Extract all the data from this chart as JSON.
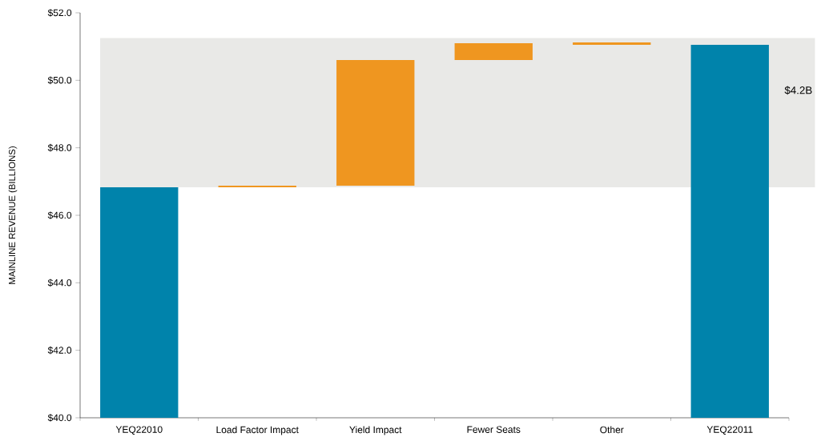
{
  "chart_data": {
    "type": "bar",
    "ylabel": "MAINLINE REVENUE (BILLIONS)",
    "categories": [
      "YEQ22010",
      "Load Factor Impact",
      "Yield Impact",
      "Fewer Seats",
      "Other",
      "YEQ22011"
    ],
    "values": [
      6.83,
      0.05,
      3.72,
      0.5,
      0.07,
      11.05
    ],
    "base": [
      40,
      46.83,
      46.88,
      50.6,
      51.05,
      40
    ],
    "colors": [
      "#0083ab",
      "#ef9620",
      "#ef9620",
      "#ef9620",
      "#ef9620",
      "#0083ab"
    ],
    "ylim": [
      40,
      52
    ],
    "yticks": [
      {
        "value": 40,
        "label": "$40.0"
      },
      {
        "value": 42,
        "label": "$42.0"
      },
      {
        "value": 44,
        "label": "$44.0"
      },
      {
        "value": 46,
        "label": "$46.0"
      },
      {
        "value": 48,
        "label": "$48.0"
      },
      {
        "value": 50,
        "label": "$50.0"
      },
      {
        "value": 52,
        "label": "$52.0"
      }
    ],
    "bands": [
      {
        "axis": "y",
        "from": 46.83,
        "to": 51.25,
        "label": "$4.2B",
        "color": "#e9e9e7"
      }
    ],
    "grid": false
  }
}
